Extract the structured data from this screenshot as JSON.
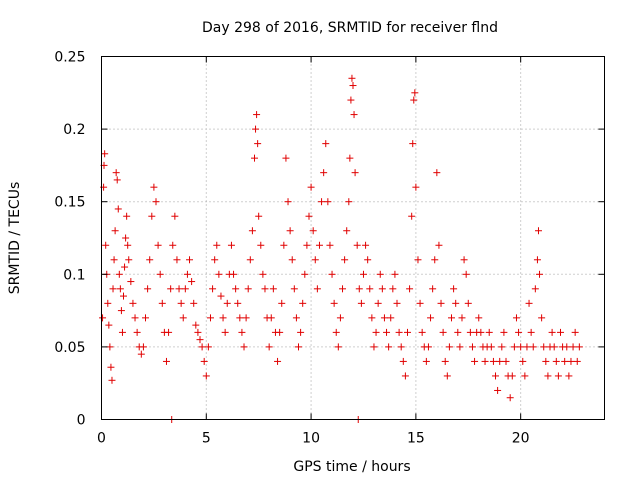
{
  "chart_data": {
    "type": "scatter",
    "title": "Day 298 of 2016, SRMTID for receiver flnd",
    "xlabel": "GPS time / hours",
    "ylabel": "SRMTID / TECUs",
    "xlim": [
      0,
      24
    ],
    "ylim": [
      0,
      0.25
    ],
    "xticks": [
      0,
      5,
      10,
      15,
      20
    ],
    "xtick_labels": [
      "0",
      "5",
      "10",
      "15",
      "20"
    ],
    "yticks": [
      0,
      0.05,
      0.1,
      0.15,
      0.2,
      0.25
    ],
    "ytick_labels": [
      "0",
      "0.05",
      "0.1",
      "0.15",
      "0.2",
      "0.25"
    ],
    "grid": true,
    "marker": "+",
    "color": "#e00000",
    "series": [
      {
        "name": "SRMTID",
        "points": [
          [
            0.05,
            0.07
          ],
          [
            0.1,
            0.16
          ],
          [
            0.12,
            0.175
          ],
          [
            0.15,
            0.183
          ],
          [
            0.2,
            0.12
          ],
          [
            0.25,
            0.1
          ],
          [
            0.3,
            0.08
          ],
          [
            0.35,
            0.065
          ],
          [
            0.4,
            0.05
          ],
          [
            0.45,
            0.036
          ],
          [
            0.5,
            0.027
          ],
          [
            0.55,
            0.09
          ],
          [
            0.6,
            0.11
          ],
          [
            0.65,
            0.13
          ],
          [
            0.7,
            0.17
          ],
          [
            0.75,
            0.165
          ],
          [
            0.8,
            0.145
          ],
          [
            0.85,
            0.1
          ],
          [
            0.9,
            0.09
          ],
          [
            0.95,
            0.075
          ],
          [
            1.0,
            0.06
          ],
          [
            1.05,
            0.085
          ],
          [
            1.1,
            0.105
          ],
          [
            1.15,
            0.125
          ],
          [
            1.2,
            0.14
          ],
          [
            1.25,
            0.12
          ],
          [
            1.3,
            0.11
          ],
          [
            1.4,
            0.095
          ],
          [
            1.5,
            0.08
          ],
          [
            1.6,
            0.07
          ],
          [
            1.7,
            0.06
          ],
          [
            1.8,
            0.05
          ],
          [
            1.9,
            0.045
          ],
          [
            2.0,
            0.05
          ],
          [
            2.1,
            0.07
          ],
          [
            2.2,
            0.09
          ],
          [
            2.3,
            0.11
          ],
          [
            2.4,
            0.14
          ],
          [
            2.5,
            0.16
          ],
          [
            2.6,
            0.15
          ],
          [
            2.7,
            0.12
          ],
          [
            2.8,
            0.1
          ],
          [
            2.9,
            0.08
          ],
          [
            3.0,
            0.06
          ],
          [
            3.1,
            0.04
          ],
          [
            3.2,
            0.06
          ],
          [
            3.3,
            0.09
          ],
          [
            3.4,
            0.12
          ],
          [
            3.5,
            0.14
          ],
          [
            3.6,
            0.11
          ],
          [
            3.7,
            0.09
          ],
          [
            3.8,
            0.08
          ],
          [
            3.9,
            0.07
          ],
          [
            4.0,
            0.09
          ],
          [
            4.1,
            0.1
          ],
          [
            4.2,
            0.11
          ],
          [
            4.3,
            0.095
          ],
          [
            4.4,
            0.08
          ],
          [
            4.5,
            0.065
          ],
          [
            4.6,
            0.06
          ],
          [
            4.7,
            0.055
          ],
          [
            4.8,
            0.05
          ],
          [
            4.9,
            0.04
          ],
          [
            5.0,
            0.03
          ],
          [
            5.1,
            0.05
          ],
          [
            5.2,
            0.07
          ],
          [
            5.3,
            0.09
          ],
          [
            5.4,
            0.11
          ],
          [
            5.5,
            0.12
          ],
          [
            5.6,
            0.1
          ],
          [
            5.7,
            0.085
          ],
          [
            5.8,
            0.07
          ],
          [
            5.9,
            0.06
          ],
          [
            6.0,
            0.08
          ],
          [
            6.1,
            0.1
          ],
          [
            6.2,
            0.12
          ],
          [
            6.3,
            0.1
          ],
          [
            6.4,
            0.09
          ],
          [
            6.5,
            0.08
          ],
          [
            6.6,
            0.07
          ],
          [
            6.7,
            0.06
          ],
          [
            6.8,
            0.05
          ],
          [
            6.9,
            0.07
          ],
          [
            7.0,
            0.09
          ],
          [
            7.1,
            0.11
          ],
          [
            7.2,
            0.13
          ],
          [
            7.3,
            0.18
          ],
          [
            7.35,
            0.2
          ],
          [
            7.4,
            0.21
          ],
          [
            7.45,
            0.19
          ],
          [
            7.5,
            0.14
          ],
          [
            7.6,
            0.12
          ],
          [
            7.7,
            0.1
          ],
          [
            7.8,
            0.09
          ],
          [
            7.9,
            0.07
          ],
          [
            8.0,
            0.05
          ],
          [
            8.1,
            0.07
          ],
          [
            8.2,
            0.09
          ],
          [
            8.3,
            0.06
          ],
          [
            8.4,
            0.04
          ],
          [
            8.5,
            0.06
          ],
          [
            8.6,
            0.08
          ],
          [
            8.7,
            0.12
          ],
          [
            8.8,
            0.18
          ],
          [
            8.9,
            0.15
          ],
          [
            9.0,
            0.13
          ],
          [
            9.1,
            0.11
          ],
          [
            9.2,
            0.09
          ],
          [
            9.3,
            0.07
          ],
          [
            9.4,
            0.05
          ],
          [
            9.5,
            0.06
          ],
          [
            9.6,
            0.08
          ],
          [
            9.7,
            0.1
          ],
          [
            9.8,
            0.12
          ],
          [
            9.9,
            0.14
          ],
          [
            10.0,
            0.16
          ],
          [
            10.1,
            0.13
          ],
          [
            10.2,
            0.11
          ],
          [
            10.3,
            0.09
          ],
          [
            10.4,
            0.12
          ],
          [
            10.5,
            0.15
          ],
          [
            10.6,
            0.17
          ],
          [
            10.7,
            0.19
          ],
          [
            10.8,
            0.15
          ],
          [
            10.9,
            0.12
          ],
          [
            11.0,
            0.1
          ],
          [
            11.1,
            0.08
          ],
          [
            11.2,
            0.06
          ],
          [
            11.3,
            0.05
          ],
          [
            11.4,
            0.07
          ],
          [
            11.5,
            0.09
          ],
          [
            11.6,
            0.11
          ],
          [
            11.7,
            0.13
          ],
          [
            11.8,
            0.15
          ],
          [
            11.85,
            0.18
          ],
          [
            11.9,
            0.22
          ],
          [
            11.95,
            0.235
          ],
          [
            12.0,
            0.23
          ],
          [
            12.05,
            0.21
          ],
          [
            12.1,
            0.17
          ],
          [
            12.2,
            0.12
          ],
          [
            12.25,
            0.0
          ],
          [
            12.3,
            0.09
          ],
          [
            12.4,
            0.08
          ],
          [
            12.5,
            0.1
          ],
          [
            12.6,
            0.12
          ],
          [
            12.7,
            0.11
          ],
          [
            12.8,
            0.09
          ],
          [
            12.9,
            0.07
          ],
          [
            13.0,
            0.05
          ],
          [
            13.1,
            0.06
          ],
          [
            13.2,
            0.08
          ],
          [
            13.3,
            0.1
          ],
          [
            13.4,
            0.09
          ],
          [
            13.5,
            0.07
          ],
          [
            13.6,
            0.06
          ],
          [
            13.7,
            0.05
          ],
          [
            13.8,
            0.07
          ],
          [
            13.9,
            0.09
          ],
          [
            14.0,
            0.1
          ],
          [
            14.1,
            0.08
          ],
          [
            14.2,
            0.06
          ],
          [
            14.3,
            0.05
          ],
          [
            14.4,
            0.04
          ],
          [
            14.5,
            0.03
          ],
          [
            14.6,
            0.06
          ],
          [
            14.7,
            0.09
          ],
          [
            14.8,
            0.14
          ],
          [
            14.85,
            0.19
          ],
          [
            14.9,
            0.22
          ],
          [
            14.95,
            0.225
          ],
          [
            15.0,
            0.16
          ],
          [
            15.1,
            0.11
          ],
          [
            15.2,
            0.08
          ],
          [
            15.3,
            0.06
          ],
          [
            15.4,
            0.05
          ],
          [
            15.5,
            0.04
          ],
          [
            15.6,
            0.05
          ],
          [
            15.7,
            0.07
          ],
          [
            15.8,
            0.09
          ],
          [
            15.9,
            0.11
          ],
          [
            16.0,
            0.17
          ],
          [
            16.1,
            0.12
          ],
          [
            16.2,
            0.08
          ],
          [
            16.3,
            0.06
          ],
          [
            16.4,
            0.04
          ],
          [
            16.5,
            0.03
          ],
          [
            16.6,
            0.05
          ],
          [
            16.7,
            0.07
          ],
          [
            16.8,
            0.09
          ],
          [
            16.9,
            0.08
          ],
          [
            17.0,
            0.06
          ],
          [
            17.1,
            0.05
          ],
          [
            17.2,
            0.07
          ],
          [
            17.3,
            0.11
          ],
          [
            17.4,
            0.1
          ],
          [
            17.5,
            0.08
          ],
          [
            17.6,
            0.06
          ],
          [
            17.7,
            0.05
          ],
          [
            17.8,
            0.04
          ],
          [
            17.9,
            0.06
          ],
          [
            18.0,
            0.07
          ],
          [
            18.1,
            0.06
          ],
          [
            18.2,
            0.05
          ],
          [
            18.3,
            0.04
          ],
          [
            18.4,
            0.05
          ],
          [
            18.5,
            0.06
          ],
          [
            18.6,
            0.05
          ],
          [
            18.7,
            0.04
          ],
          [
            18.8,
            0.03
          ],
          [
            18.9,
            0.02
          ],
          [
            19.0,
            0.04
          ],
          [
            19.1,
            0.05
          ],
          [
            19.2,
            0.06
          ],
          [
            19.3,
            0.04
          ],
          [
            19.4,
            0.03
          ],
          [
            19.5,
            0.015
          ],
          [
            19.6,
            0.03
          ],
          [
            19.7,
            0.05
          ],
          [
            19.8,
            0.07
          ],
          [
            19.9,
            0.06
          ],
          [
            20.0,
            0.05
          ],
          [
            20.1,
            0.04
          ],
          [
            20.2,
            0.03
          ],
          [
            20.3,
            0.05
          ],
          [
            20.4,
            0.08
          ],
          [
            20.5,
            0.06
          ],
          [
            20.6,
            0.05
          ],
          [
            20.7,
            0.09
          ],
          [
            20.8,
            0.11
          ],
          [
            20.85,
            0.13
          ],
          [
            20.9,
            0.1
          ],
          [
            21.0,
            0.07
          ],
          [
            21.1,
            0.05
          ],
          [
            21.2,
            0.04
          ],
          [
            21.3,
            0.03
          ],
          [
            21.4,
            0.05
          ],
          [
            21.5,
            0.06
          ],
          [
            21.6,
            0.05
          ],
          [
            21.7,
            0.04
          ],
          [
            21.8,
            0.03
          ],
          [
            21.9,
            0.06
          ],
          [
            22.0,
            0.05
          ],
          [
            22.1,
            0.04
          ],
          [
            22.2,
            0.05
          ],
          [
            22.3,
            0.03
          ],
          [
            22.4,
            0.04
          ],
          [
            22.5,
            0.05
          ],
          [
            22.6,
            0.06
          ],
          [
            22.7,
            0.04
          ],
          [
            22.8,
            0.05
          ],
          [
            3.35,
            0.0
          ]
        ]
      }
    ]
  }
}
